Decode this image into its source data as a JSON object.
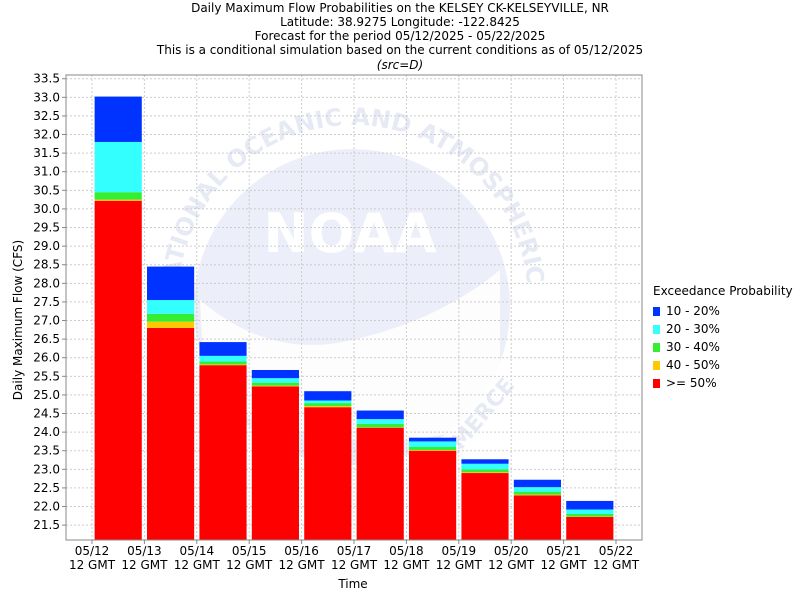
{
  "titles": {
    "line1": "Daily Maximum Flow Probabilities on the KELSEY CK-KELSEYVILLE, NR",
    "line2": "Latitude: 38.9275 Longitude: -122.8425",
    "line3": "Forecast for the period 05/12/2025 - 05/22/2025",
    "line4": "This is a conditional simulation based on the current conditions as of 05/12/2025",
    "line5": "(src=D)"
  },
  "watermark": {
    "logo_text": "NOAA",
    "ring_text": "NATIONAL OCEANIC AND ATMOSPHERIC ADMINISTRATION",
    "lower_text": "COMMERCE"
  },
  "chart_data": {
    "type": "bar",
    "stacked": true,
    "title": "Daily Maximum Flow Probabilities on the KELSEY CK-KELSEYVILLE, NR",
    "xlabel": "Time",
    "ylabel": "Daily Maximum Flow (CFS)",
    "ylim": [
      21.1,
      33.6
    ],
    "yticks": [
      21.5,
      22.0,
      22.5,
      23.0,
      23.5,
      24.0,
      24.5,
      25.0,
      25.5,
      26.0,
      26.5,
      27.0,
      27.5,
      28.0,
      28.5,
      29.0,
      29.5,
      30.0,
      30.5,
      31.0,
      31.5,
      32.0,
      32.5,
      33.0,
      33.5
    ],
    "xticks": [
      {
        "date": "05/12",
        "sub": "12 GMT"
      },
      {
        "date": "05/13",
        "sub": "12 GMT"
      },
      {
        "date": "05/14",
        "sub": "12 GMT"
      },
      {
        "date": "05/15",
        "sub": "12 GMT"
      },
      {
        "date": "05/16",
        "sub": "12 GMT"
      },
      {
        "date": "05/17",
        "sub": "12 GMT"
      },
      {
        "date": "05/18",
        "sub": "12 GMT"
      },
      {
        "date": "05/19",
        "sub": "12 GMT"
      },
      {
        "date": "05/20",
        "sub": "12 GMT"
      },
      {
        "date": "05/21",
        "sub": "12 GMT"
      },
      {
        "date": "05/22",
        "sub": "12 GMT"
      }
    ],
    "grid": true,
    "legend_title": "Exceedance Probability",
    "legend_position": "right",
    "series": [
      {
        "name": ">= 50%",
        "color": "#ff0000"
      },
      {
        "name": "40 - 50%",
        "color": "#ffc800"
      },
      {
        "name": "30 - 40%",
        "color": "#33ee33"
      },
      {
        "name": "20 - 30%",
        "color": "#33ffff"
      },
      {
        "name": "10 - 20%",
        "color": "#0033ff"
      }
    ],
    "bars": [
      {
        "day": "05/12",
        "levels": [
          30.22,
          30.25,
          30.45,
          31.8,
          33.02
        ]
      },
      {
        "day": "05/13",
        "levels": [
          26.8,
          26.97,
          27.18,
          27.55,
          28.45
        ]
      },
      {
        "day": "05/14",
        "levels": [
          25.8,
          25.82,
          25.9,
          26.05,
          26.42
        ]
      },
      {
        "day": "05/15",
        "levels": [
          25.23,
          25.25,
          25.33,
          25.45,
          25.67
        ]
      },
      {
        "day": "05/16",
        "levels": [
          24.67,
          24.7,
          24.78,
          24.85,
          25.1
        ]
      },
      {
        "day": "05/17",
        "levels": [
          24.12,
          24.13,
          24.22,
          24.35,
          24.58
        ]
      },
      {
        "day": "05/18",
        "levels": [
          23.5,
          23.52,
          23.6,
          23.75,
          23.85
        ]
      },
      {
        "day": "05/19",
        "levels": [
          22.9,
          22.92,
          23.0,
          23.15,
          23.27
        ]
      },
      {
        "day": "05/20",
        "levels": [
          22.3,
          22.32,
          22.4,
          22.52,
          22.72
        ]
      },
      {
        "day": "05/21",
        "levels": [
          21.72,
          21.73,
          21.8,
          21.92,
          22.15
        ]
      }
    ]
  }
}
